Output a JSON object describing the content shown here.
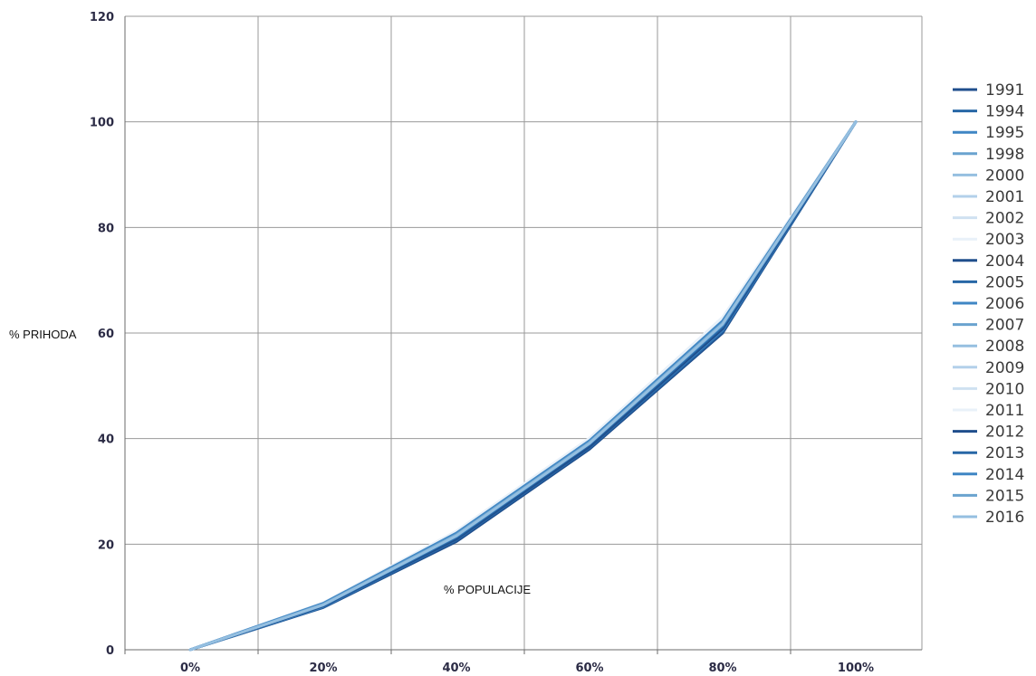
{
  "chart_data": {
    "type": "line",
    "xlabel": "% POPULACIJE",
    "ylabel": "% PRIHODA",
    "categories": [
      "0%",
      "20%",
      "40%",
      "60%",
      "80%",
      "100%"
    ],
    "x": [
      0,
      20,
      40,
      60,
      80,
      100
    ],
    "ylim": [
      0,
      120
    ],
    "yticks": [
      "0",
      "20",
      "40",
      "60",
      "80",
      "100",
      "120"
    ],
    "grid": true,
    "legend_position": "right",
    "series": [
      {
        "name": "1991",
        "color": "#1f4e8c",
        "values": [
          0,
          8.0,
          20.5,
          38.0,
          60.0,
          100
        ]
      },
      {
        "name": "1994",
        "color": "#2767a6",
        "values": [
          0,
          8.1,
          20.8,
          38.3,
          60.3,
          100
        ]
      },
      {
        "name": "1995",
        "color": "#3f86c4",
        "values": [
          0,
          8.2,
          21.0,
          38.6,
          60.6,
          100
        ]
      },
      {
        "name": "1998",
        "color": "#6aa3cf",
        "values": [
          0,
          8.3,
          21.2,
          38.8,
          61.0,
          100
        ]
      },
      {
        "name": "2000",
        "color": "#95bfe0",
        "values": [
          0,
          8.4,
          21.4,
          39.0,
          61.3,
          100
        ]
      },
      {
        "name": "2001",
        "color": "#b3d0ea",
        "values": [
          0,
          8.5,
          21.6,
          39.2,
          61.6,
          100
        ]
      },
      {
        "name": "2002",
        "color": "#cfe1f1",
        "values": [
          0,
          8.6,
          21.8,
          39.4,
          61.9,
          100
        ]
      },
      {
        "name": "2003",
        "color": "#e9f1f9",
        "values": [
          0,
          8.7,
          22.0,
          39.6,
          62.2,
          100
        ]
      },
      {
        "name": "2004",
        "color": "#1f4e8c",
        "values": [
          0,
          8.3,
          21.0,
          38.5,
          60.8,
          100
        ]
      },
      {
        "name": "2005",
        "color": "#2767a6",
        "values": [
          0,
          8.4,
          21.3,
          38.9,
          61.2,
          100
        ]
      },
      {
        "name": "2006",
        "color": "#3f86c4",
        "values": [
          0,
          8.5,
          21.5,
          39.1,
          61.5,
          100
        ]
      },
      {
        "name": "2007",
        "color": "#6aa3cf",
        "values": [
          0,
          8.6,
          21.8,
          39.4,
          61.9,
          100
        ]
      },
      {
        "name": "2008",
        "color": "#95bfe0",
        "values": [
          0,
          8.7,
          22.0,
          39.6,
          62.2,
          100
        ]
      },
      {
        "name": "2009",
        "color": "#b3d0ea",
        "values": [
          0,
          8.8,
          22.2,
          39.8,
          62.5,
          100
        ]
      },
      {
        "name": "2010",
        "color": "#cfe1f1",
        "values": [
          0,
          8.9,
          22.4,
          40.0,
          62.8,
          100
        ]
      },
      {
        "name": "2011",
        "color": "#e9f1f9",
        "values": [
          0,
          8.9,
          22.5,
          40.1,
          63.0,
          100
        ]
      },
      {
        "name": "2012",
        "color": "#1f4e8c",
        "values": [
          0,
          8.6,
          21.7,
          39.2,
          61.8,
          100
        ]
      },
      {
        "name": "2013",
        "color": "#2767a6",
        "values": [
          0,
          8.7,
          21.9,
          39.4,
          62.0,
          100
        ]
      },
      {
        "name": "2014",
        "color": "#3f86c4",
        "values": [
          0,
          8.8,
          22.1,
          39.6,
          62.3,
          100
        ]
      },
      {
        "name": "2015",
        "color": "#6aa3cf",
        "values": [
          0,
          8.6,
          21.8,
          39.3,
          61.9,
          100
        ]
      },
      {
        "name": "2016",
        "color": "#95bfe0",
        "values": [
          0,
          8.5,
          21.6,
          39.1,
          61.7,
          100
        ]
      }
    ]
  }
}
